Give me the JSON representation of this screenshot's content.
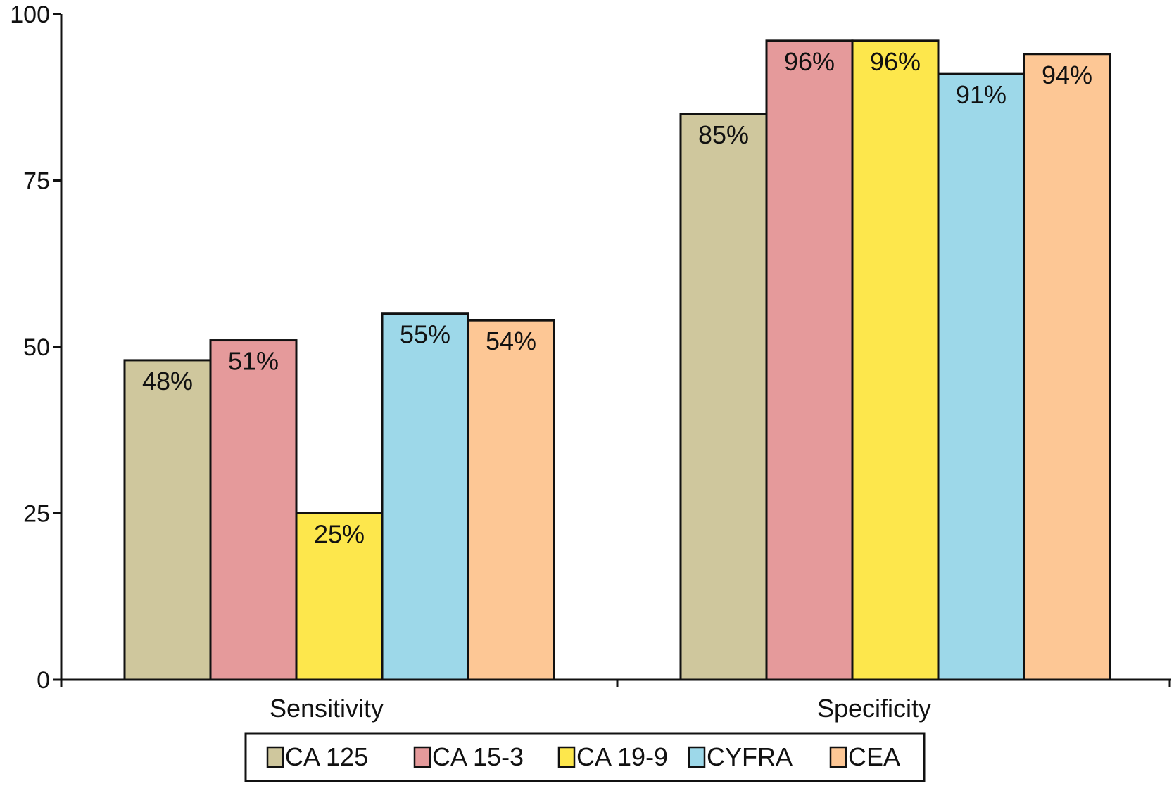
{
  "chart_data": {
    "type": "bar",
    "title": "",
    "xlabel": "",
    "ylabel": "",
    "ylim": [
      0,
      100
    ],
    "yticks": [
      "0",
      "25",
      "50",
      "75",
      "100"
    ],
    "categories": [
      "Sensitivity",
      "Specificity"
    ],
    "series": [
      {
        "name": "CA 125",
        "color": "#cfc79d",
        "values": [
          48,
          85
        ],
        "labels": [
          "48%",
          "85%"
        ]
      },
      {
        "name": "CA 15-3",
        "color": "#e59a9b",
        "values": [
          51,
          96
        ],
        "labels": [
          "51%",
          "96%"
        ]
      },
      {
        "name": "CA 19-9",
        "color": "#fde74c",
        "values": [
          25,
          96
        ],
        "labels": [
          "25%",
          "96%"
        ]
      },
      {
        "name": "CYFRA",
        "color": "#9dd8e9",
        "values": [
          55,
          91
        ],
        "labels": [
          "55%",
          "91%"
        ]
      },
      {
        "name": "CEA",
        "color": "#fdc795",
        "values": [
          54,
          94
        ],
        "labels": [
          "54%",
          "94%"
        ]
      }
    ],
    "legend_position": "bottom",
    "grid": false
  }
}
